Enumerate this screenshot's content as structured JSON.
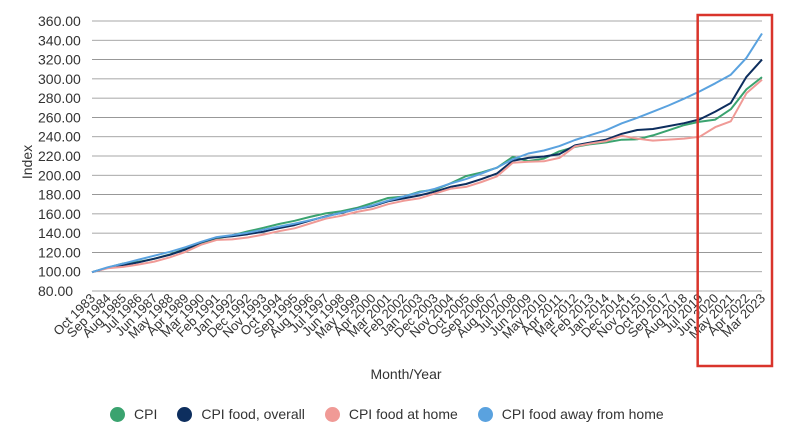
{
  "chart_data": {
    "type": "line",
    "title": "",
    "xlabel": "Month/Year",
    "ylabel": "Index",
    "ylim": [
      80,
      360
    ],
    "yticks": [
      "360.00",
      "340.00",
      "320.00",
      "300.00",
      "280.00",
      "260.00",
      "240.00",
      "220.00",
      "200.00",
      "180.00",
      "160.00",
      "140.00",
      "120.00",
      "100.00",
      "80.00"
    ],
    "x_ticks": [
      "Oct 1983",
      "Sep 1984",
      "Aug 1985",
      "Jul 1986",
      "Jun 1987",
      "May 1988",
      "Apr 1989",
      "Mar 1990",
      "Feb 1991",
      "Jan 1992",
      "Dec 1992",
      "Nov 1993",
      "Oct 1994",
      "Sep 1995",
      "Aug 1996",
      "Jul 1997",
      "Jun 1998",
      "May 1999",
      "Apr 2000",
      "Mar 2001",
      "Feb 2002",
      "Jan 2003",
      "Dec 2003",
      "Nov 2004",
      "Oct 2005",
      "Sep 2006",
      "Aug 2007",
      "Jul 2008",
      "Jun 2009",
      "May 2010",
      "Apr 2011",
      "Mar 2012",
      "Feb 2013",
      "Jan 2014",
      "Dec 2014",
      "Nov 2015",
      "Oct 2016",
      "Sep 2017",
      "Aug 2018",
      "Jul 2019",
      "Jun 2020",
      "May 2021",
      "Apr 2022",
      "Mar 2023"
    ],
    "grid": true,
    "legend_position": "bottom",
    "highlight": {
      "x_range": [
        "Jul 2019",
        "Mar 2023"
      ],
      "color": "#d9342b"
    },
    "series": [
      {
        "name": "CPI",
        "color": "#3aa36f",
        "values": [
          99.5,
          104.2,
          108.5,
          110.3,
          113.4,
          118.0,
          123.8,
          128.7,
          134.3,
          137.8,
          141.8,
          145.5,
          149.5,
          152.8,
          156.8,
          160.5,
          162.8,
          166.2,
          171.3,
          176.4,
          177.9,
          182.9,
          185.0,
          191.6,
          199.2,
          202.9,
          207.9,
          219.1,
          214.7,
          217.3,
          224.9,
          229.4,
          232.2,
          234.1,
          236.9,
          237.3,
          241.4,
          246.6,
          252.0,
          255.6,
          257.8,
          268.5,
          289.1,
          301.8
        ]
      },
      {
        "name": "CPI food, overall",
        "color": "#0d2e5e",
        "values": [
          99.5,
          104.0,
          106.5,
          109.8,
          113.5,
          117.5,
          123.0,
          130.5,
          135.5,
          136.8,
          138.9,
          141.5,
          145.1,
          148.3,
          153.0,
          157.5,
          161.0,
          165.0,
          168.0,
          173.0,
          176.0,
          179.0,
          183.0,
          188.0,
          191.0,
          196.0,
          202.0,
          215.0,
          218.0,
          219.5,
          222.0,
          231.0,
          234.0,
          237.0,
          243.0,
          247.0,
          248.0,
          251.0,
          254.0,
          258.0,
          266.0,
          275.0,
          302.0,
          320.0
        ]
      },
      {
        "name": "CPI food at home",
        "color": "#f09a96",
        "values": [
          99.5,
          103.5,
          105.0,
          107.5,
          110.5,
          115.0,
          120.5,
          128.0,
          133.0,
          133.5,
          135.5,
          138.5,
          142.0,
          145.0,
          150.0,
          155.0,
          158.0,
          162.0,
          165.0,
          170.0,
          173.5,
          176.0,
          181.0,
          186.0,
          188.0,
          193.0,
          199.0,
          213.0,
          214.0,
          214.5,
          218.0,
          230.0,
          233.0,
          235.5,
          241.0,
          238.0,
          236.0,
          237.0,
          238.0,
          240.0,
          250.0,
          256.0,
          285.0,
          299.0
        ]
      },
      {
        "name": "CPI food away from home",
        "color": "#5aa2df",
        "values": [
          99.5,
          104.6,
          108.4,
          112.6,
          116.6,
          120.6,
          125.4,
          131.0,
          135.9,
          138.0,
          140.5,
          143.6,
          146.8,
          149.9,
          153.4,
          157.1,
          161.3,
          164.9,
          168.8,
          173.8,
          178.0,
          182.0,
          186.0,
          191.4,
          196.0,
          201.9,
          208.1,
          216.6,
          222.6,
          225.7,
          230.3,
          236.6,
          241.7,
          246.8,
          253.9,
          259.6,
          265.9,
          272.4,
          279.4,
          287.0,
          295.4,
          304.3,
          321.7,
          347.0
        ]
      }
    ]
  },
  "legend": [
    {
      "label": "CPI",
      "color": "#3aa36f"
    },
    {
      "label": "CPI food, overall",
      "color": "#0d2e5e"
    },
    {
      "label": "CPI food at home",
      "color": "#f09a96"
    },
    {
      "label": "CPI food away from home",
      "color": "#5aa2df"
    }
  ]
}
